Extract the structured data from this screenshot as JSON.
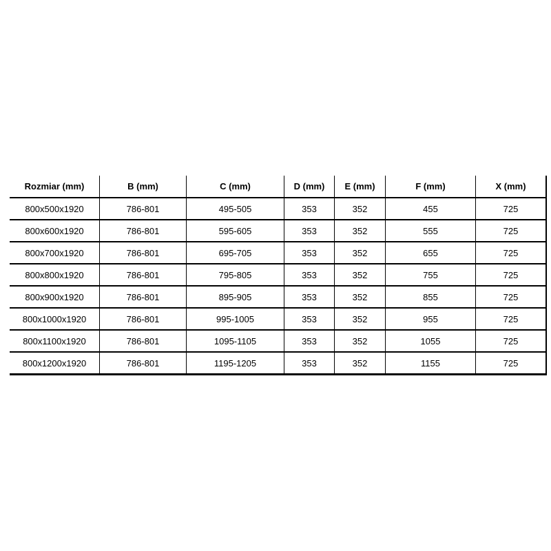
{
  "chart_data": {
    "type": "table",
    "title": "",
    "columns": [
      "Rozmiar (mm)",
      "B (mm)",
      "C (mm)",
      "D (mm)",
      "E (mm)",
      "F (mm)",
      "X (mm)"
    ],
    "rows": [
      [
        "800x500x1920",
        "786-801",
        "495-505",
        "353",
        "352",
        "455",
        "725"
      ],
      [
        "800x600x1920",
        "786-801",
        "595-605",
        "353",
        "352",
        "555",
        "725"
      ],
      [
        "800x700x1920",
        "786-801",
        "695-705",
        "353",
        "352",
        "655",
        "725"
      ],
      [
        "800x800x1920",
        "786-801",
        "795-805",
        "353",
        "352",
        "755",
        "725"
      ],
      [
        "800x900x1920",
        "786-801",
        "895-905",
        "353",
        "352",
        "855",
        "725"
      ],
      [
        "800x1000x1920",
        "786-801",
        "995-1005",
        "353",
        "352",
        "955",
        "725"
      ],
      [
        "800x1100x1920",
        "786-801",
        "1095-1105",
        "353",
        "352",
        "1055",
        "725"
      ],
      [
        "800x1200x1920",
        "786-801",
        "1195-1205",
        "353",
        "352",
        "1155",
        "725"
      ]
    ],
    "layout": {
      "header_bold": true,
      "cell_alignment": "center",
      "grid": "internal-and-bottom-right-borders",
      "border_color": "#000000",
      "background": "#ffffff",
      "text_color": "#000000"
    }
  }
}
